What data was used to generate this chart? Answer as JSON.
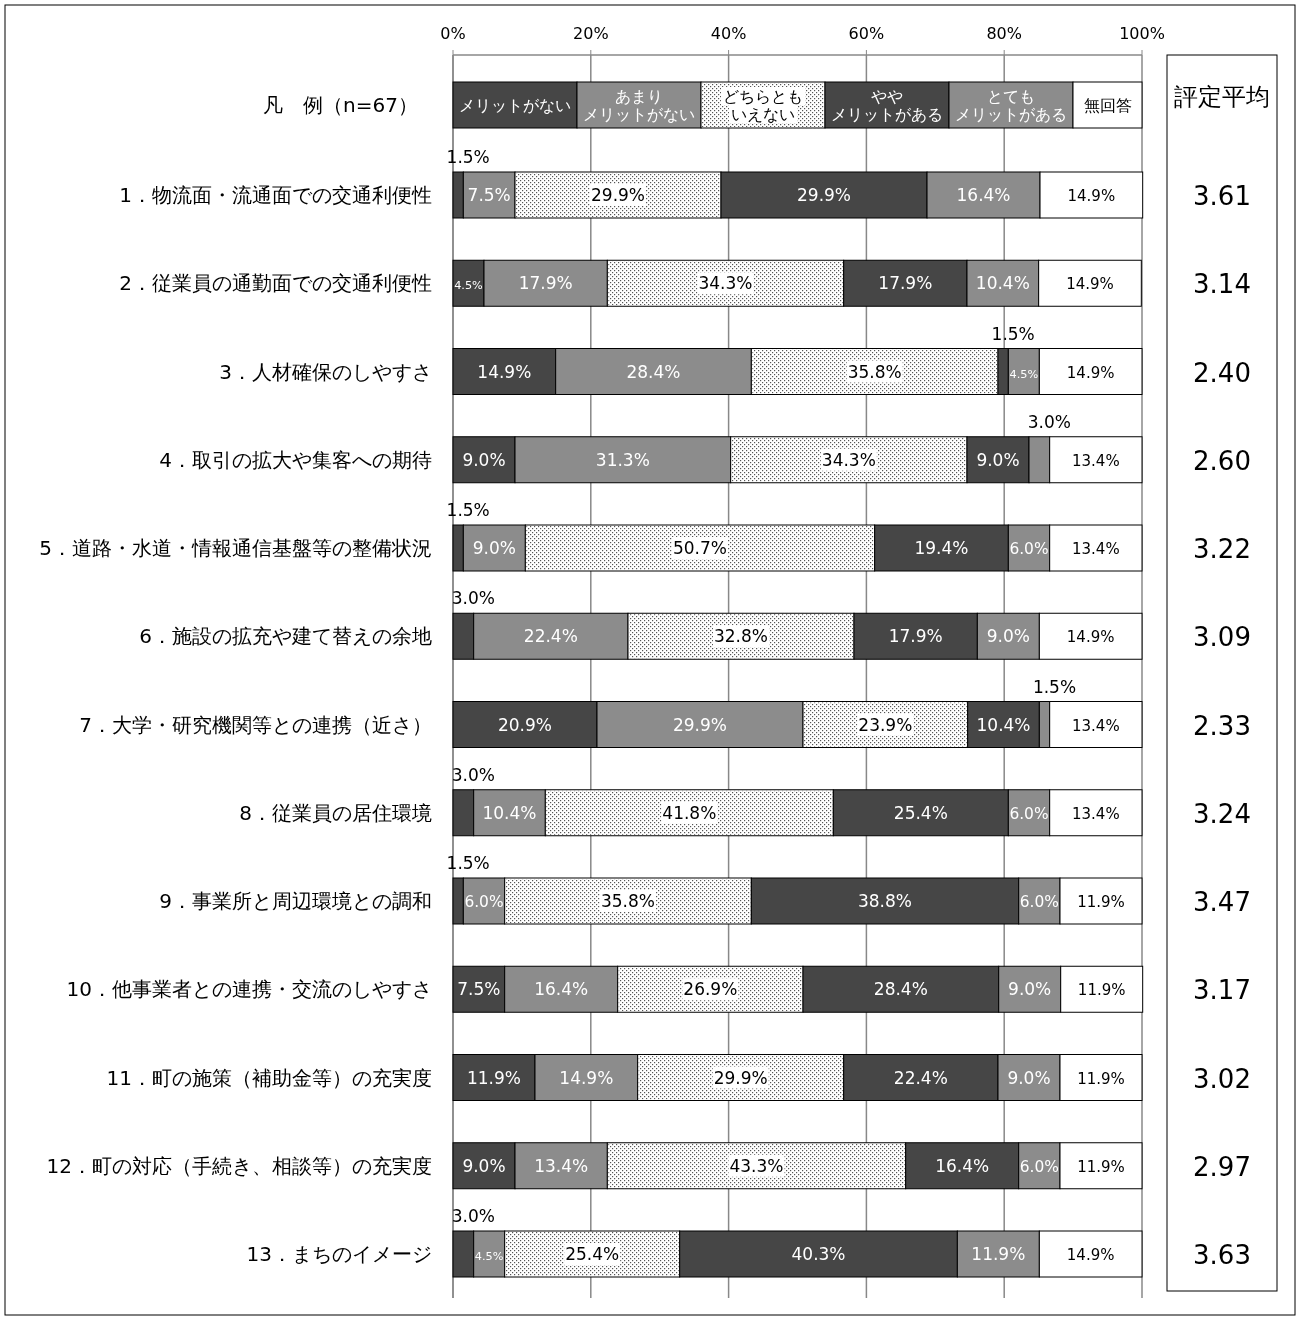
{
  "chart_data": {
    "type": "bar",
    "orientation": "horizontal",
    "stacked": true,
    "legend": "top",
    "legend_title": "凡　例（n=67）",
    "grid": "x",
    "xlim": [
      0,
      100
    ],
    "xticks": [
      {
        "value": 0,
        "label": "0%"
      },
      {
        "value": 20,
        "label": "20%"
      },
      {
        "value": 40,
        "label": "40%"
      },
      {
        "value": 60,
        "label": "60%"
      },
      {
        "value": 80,
        "label": "80%"
      },
      {
        "value": 100,
        "label": "100%"
      }
    ],
    "categories": [
      "1．物流面・流通面での交通利便性",
      "2．従業員の通勤面での交通利便性",
      "3．人材確保のしやすさ",
      "4．取引の拡大や集客への期待",
      "5．道路・水道・情報通信基盤等の整備状況",
      "6．施設の拡充や建て替えの余地",
      "7．大学・研究機関等との連携（近さ）",
      "8．従業員の居住環境",
      "9．事業所と周辺環境との調和",
      "10．他事業者との連携・交流のしやすさ",
      "11．町の施策（補助金等）の充実度",
      "12．町の対応（手続き、相談等）の充実度",
      "13．まちのイメージ"
    ],
    "series": [
      {
        "name": "メリットがない",
        "color": "#464646",
        "values": [
          1.5,
          4.5,
          14.9,
          9.0,
          1.5,
          3.0,
          20.9,
          3.0,
          1.5,
          7.5,
          11.9,
          9.0,
          3.0
        ],
        "value_labels": [
          "1.5%",
          "4.5%",
          "14.9%",
          "9.0%",
          "1.5%",
          "3.0%",
          "20.9%",
          "3.0%",
          "1.5%",
          "7.5%",
          "11.9%",
          "9.0%",
          "3.0%"
        ]
      },
      {
        "name": "あまりメリットがない",
        "color": "#8c8c8c",
        "values": [
          7.5,
          17.9,
          28.4,
          31.3,
          9.0,
          22.4,
          29.9,
          10.4,
          6.0,
          16.4,
          14.9,
          13.4,
          4.5
        ],
        "value_labels": [
          "7.5%",
          "17.9%",
          "28.4%",
          "31.3%",
          "9.0%",
          "22.4%",
          "29.9%",
          "10.4%",
          "6.0%",
          "16.4%",
          "14.9%",
          "13.4%",
          "4.5%"
        ]
      },
      {
        "name": "どちらともいえない",
        "color": "#ffffff",
        "values": [
          29.9,
          34.3,
          35.8,
          34.3,
          50.7,
          32.8,
          23.9,
          41.8,
          35.8,
          26.9,
          29.9,
          43.3,
          25.4
        ],
        "value_labels": [
          "29.9%",
          "34.3%",
          "35.8%",
          "34.3%",
          "50.7%",
          "32.8%",
          "23.9%",
          "41.8%",
          "35.8%",
          "26.9%",
          "29.9%",
          "43.3%",
          "25.4%"
        ]
      },
      {
        "name": "ややメリットがある",
        "color": "#464646",
        "values": [
          29.9,
          17.9,
          1.5,
          9.0,
          19.4,
          17.9,
          10.4,
          25.4,
          38.8,
          28.4,
          22.4,
          16.4,
          40.3
        ],
        "value_labels": [
          "29.9%",
          "17.9%",
          "1.5%",
          "9.0%",
          "19.4%",
          "17.9%",
          "10.4%",
          "25.4%",
          "38.8%",
          "28.4%",
          "22.4%",
          "16.4%",
          "40.3%"
        ]
      },
      {
        "name": "とてもメリットがある",
        "color": "#8c8c8c",
        "values": [
          16.4,
          10.4,
          4.5,
          3.0,
          6.0,
          9.0,
          1.5,
          6.0,
          6.0,
          9.0,
          9.0,
          6.0,
          11.9
        ],
        "value_labels": [
          "16.4%",
          "10.4%",
          "4.5%",
          "3.0%",
          "6.0%",
          "9.0%",
          "1.5%",
          "6.0%",
          "6.0%",
          "9.0%",
          "9.0%",
          "6.0%",
          "11.9%"
        ]
      },
      {
        "name": "無回答",
        "color": "#ffffff",
        "values": [
          14.9,
          14.9,
          14.9,
          13.4,
          13.4,
          14.9,
          13.4,
          13.4,
          11.9,
          11.9,
          11.9,
          11.9,
          14.9
        ],
        "value_labels": [
          "14.9%",
          "14.9%",
          "14.9%",
          "13.4%",
          "13.4%",
          "14.9%",
          "13.4%",
          "13.4%",
          "11.9%",
          "11.9%",
          "11.9%",
          "11.9%",
          "14.9%"
        ]
      }
    ],
    "annotations": [
      "評定平均",
      "3.61",
      "3.14",
      "2.40",
      "2.60",
      "3.22",
      "3.09",
      "2.33",
      "3.24",
      "3.47",
      "3.17",
      "3.02",
      "2.97",
      "3.63"
    ]
  }
}
